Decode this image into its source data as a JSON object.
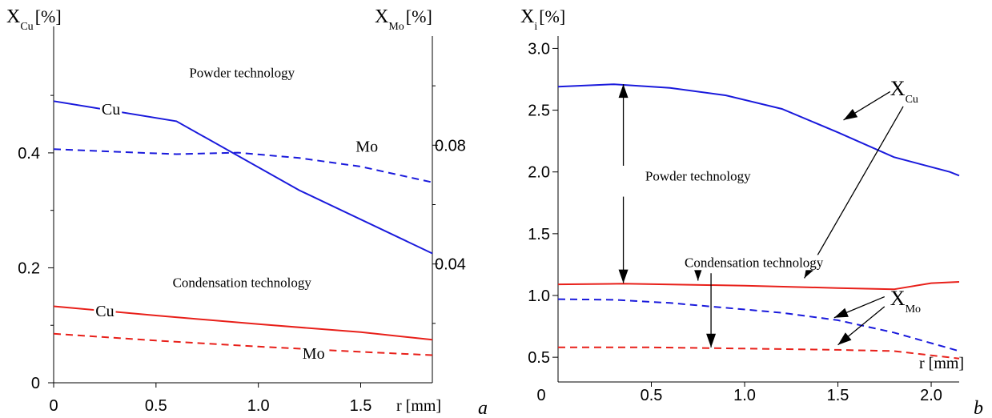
{
  "chart_data": [
    {
      "panel_label": "a",
      "type": "line",
      "xlabel": "r [mm]",
      "y_left_label": {
        "main": "X",
        "sub": "Cu",
        "unit": "[%]"
      },
      "y_right_label": {
        "main": "X",
        "sub": "Mo",
        "unit": "[%]"
      },
      "xlim": [
        0,
        1.85
      ],
      "ylim_left": [
        0,
        0.62
      ],
      "ylim_right": [
        0,
        0.12
      ],
      "x_ticks": [
        {
          "value": 0,
          "label": "0"
        },
        {
          "value": 0.5,
          "label": "0.5"
        },
        {
          "value": 1.0,
          "label": "1.0"
        },
        {
          "value": 1.5,
          "label": "1.5"
        }
      ],
      "y_left_ticks": [
        {
          "value": 0,
          "label": "0"
        },
        {
          "value": 0.2,
          "label": "0.2"
        },
        {
          "value": 0.4,
          "label": "0.4"
        }
      ],
      "y_left_minor": [
        0.1,
        0.3,
        0.5
      ],
      "y_right_ticks": [
        {
          "value": 0.04,
          "label": "0.04"
        },
        {
          "value": 0.08,
          "label": "0.08"
        }
      ],
      "y_right_minor": [
        0.02,
        0.06,
        0.1
      ],
      "series": [
        {
          "name": "Cu",
          "axis": "left",
          "color": "#1a1adc",
          "dash": false,
          "points": [
            [
              0,
              0.49
            ],
            [
              0.6,
              0.455
            ],
            [
              1.2,
              0.335
            ],
            [
              1.85,
              0.225
            ]
          ]
        },
        {
          "name": "Mo",
          "axis": "right",
          "color": "#1a1adc",
          "dash": true,
          "points": [
            [
              0,
              0.0787
            ],
            [
              0.3,
              0.0778
            ],
            [
              0.6,
              0.077
            ],
            [
              0.9,
              0.0775
            ],
            [
              1.2,
              0.0757
            ],
            [
              1.5,
              0.0728
            ],
            [
              1.85,
              0.0675
            ]
          ]
        },
        {
          "name": "Cu",
          "axis": "left",
          "color": "#e8201a",
          "dash": false,
          "points": [
            [
              0,
              0.133
            ],
            [
              0.5,
              0.117
            ],
            [
              1.0,
              0.102
            ],
            [
              1.5,
              0.088
            ],
            [
              1.85,
              0.075
            ]
          ]
        },
        {
          "name": "Mo",
          "axis": "right",
          "color": "#e8201a",
          "dash": true,
          "points": [
            [
              0,
              0.0165
            ],
            [
              0.5,
              0.0142
            ],
            [
              1.0,
              0.0122
            ],
            [
              1.5,
              0.0104
            ],
            [
              1.85,
              0.0093
            ]
          ]
        }
      ],
      "annotations": [
        {
          "text": "Powder technology",
          "x": 0.92,
          "y": 0.54,
          "axis": "left"
        },
        {
          "text": "Cu",
          "x": 0.28,
          "y": 0.475,
          "axis": "left"
        },
        {
          "text": "Mo",
          "x": 1.53,
          "y": 0.41,
          "axis": "left"
        },
        {
          "text": "Condensation technology",
          "x": 0.92,
          "y": 0.175,
          "axis": "left"
        },
        {
          "text": "Cu",
          "x": 0.25,
          "y": 0.124,
          "axis": "left"
        },
        {
          "text": "Mo",
          "x": 1.27,
          "y": 0.05,
          "axis": "left"
        }
      ]
    },
    {
      "panel_label": "b",
      "type": "line",
      "xlabel": "r [mm]",
      "ylabel": {
        "main": "X",
        "sub": "i",
        "unit": "[%]"
      },
      "xlim": [
        0,
        2.15
      ],
      "ylim": [
        0.3,
        3.1
      ],
      "x_ticks": [
        {
          "value": 0.5,
          "label": "0.5"
        },
        {
          "value": 1.0,
          "label": "1.0"
        },
        {
          "value": 1.5,
          "label": "1.5"
        },
        {
          "value": 2.0,
          "label": "2.0"
        }
      ],
      "x_origin_label": "0",
      "y_ticks": [
        {
          "value": 0.5,
          "label": "0.5"
        },
        {
          "value": 1.0,
          "label": "1.0"
        },
        {
          "value": 1.5,
          "label": "1.5"
        },
        {
          "value": 2.0,
          "label": "2.0"
        },
        {
          "value": 2.5,
          "label": "2.5"
        },
        {
          "value": 3.0,
          "label": "3.0"
        }
      ],
      "series": [
        {
          "name": "X_Cu powder",
          "color": "#1a1adc",
          "dash": false,
          "points": [
            [
              0,
              2.69
            ],
            [
              0.3,
              2.71
            ],
            [
              0.6,
              2.68
            ],
            [
              0.9,
              2.62
            ],
            [
              1.2,
              2.51
            ],
            [
              1.5,
              2.32
            ],
            [
              1.8,
              2.12
            ],
            [
              2.1,
              2.0
            ],
            [
              2.15,
              1.97
            ]
          ]
        },
        {
          "name": "X_Cu condensation",
          "color": "#e8201a",
          "dash": false,
          "points": [
            [
              0,
              1.09
            ],
            [
              0.35,
              1.095
            ],
            [
              1.0,
              1.08
            ],
            [
              1.5,
              1.06
            ],
            [
              1.8,
              1.05
            ],
            [
              2.0,
              1.1
            ],
            [
              2.15,
              1.11
            ]
          ]
        },
        {
          "name": "X_Mo powder",
          "color": "#1a1adc",
          "dash": true,
          "points": [
            [
              0,
              0.97
            ],
            [
              0.3,
              0.965
            ],
            [
              0.6,
              0.94
            ],
            [
              0.9,
              0.9
            ],
            [
              1.2,
              0.86
            ],
            [
              1.5,
              0.8
            ],
            [
              1.8,
              0.7
            ],
            [
              2.15,
              0.55
            ]
          ]
        },
        {
          "name": "X_Mo condensation",
          "color": "#e8201a",
          "dash": true,
          "points": [
            [
              0,
              0.58
            ],
            [
              0.5,
              0.58
            ],
            [
              1.0,
              0.57
            ],
            [
              1.5,
              0.56
            ],
            [
              1.8,
              0.55
            ],
            [
              2.15,
              0.49
            ]
          ]
        }
      ],
      "annotations": [
        {
          "text": "Powder technology",
          "x": 0.75,
          "y": 1.97
        },
        {
          "text": "Condensation technology",
          "x": 1.05,
          "y": 1.27
        },
        {
          "text": "X",
          "sub": "Cu",
          "x": 1.78,
          "y": 2.68,
          "big": true
        },
        {
          "text": "X",
          "sub": "Mo",
          "x": 1.78,
          "y": 0.98,
          "big": true
        }
      ],
      "arrows": [
        {
          "from": [
            0.35,
            2.05
          ],
          "to": [
            0.35,
            2.71
          ],
          "note": "double-headed up",
          "up": true
        },
        {
          "from": [
            0.35,
            1.8
          ],
          "to": [
            0.35,
            1.1
          ]
        },
        {
          "from": [
            0.75,
            1.18
          ],
          "to": [
            0.75,
            1.12
          ]
        },
        {
          "from": [
            0.82,
            1.18
          ],
          "to": [
            0.82,
            0.58
          ]
        },
        {
          "from": [
            1.78,
            2.65
          ],
          "to": [
            1.53,
            2.42
          ]
        },
        {
          "from": [
            1.85,
            2.53
          ],
          "to": [
            1.32,
            1.14
          ]
        },
        {
          "from": [
            1.75,
            0.99
          ],
          "to": [
            1.48,
            0.82
          ]
        },
        {
          "from": [
            1.75,
            0.91
          ],
          "to": [
            1.5,
            0.6
          ]
        }
      ]
    }
  ]
}
